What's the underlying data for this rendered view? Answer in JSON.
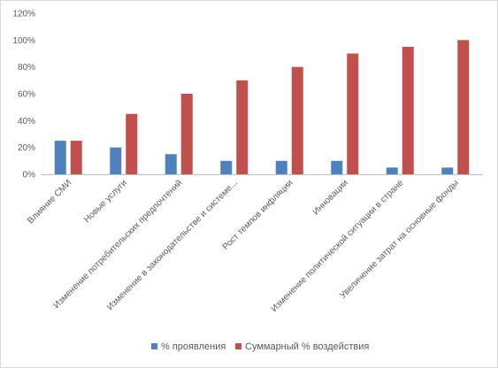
{
  "chart_data": {
    "type": "bar",
    "categories": [
      "Влияние СМИ",
      "Новые услуги",
      "Изменение потребительских предпочтений",
      "Изменение в законодательстве и системе...",
      "Рост темпов инфляции",
      "Инновации",
      "Изменение политической ситуации в стране",
      "Увеличение затрат на основные фонды"
    ],
    "series": [
      {
        "name": "% проявления",
        "color": "#4f81bd",
        "values": [
          25,
          20,
          15,
          10,
          10,
          10,
          5,
          5
        ]
      },
      {
        "name": "Суммарный % воздействия",
        "color": "#c0504d",
        "values": [
          25,
          45,
          60,
          70,
          80,
          90,
          95,
          100
        ]
      }
    ],
    "ylim": [
      0,
      120
    ],
    "ytick_values": [
      0,
      20,
      40,
      60,
      80,
      100,
      120
    ],
    "ytick_labels": [
      "0%",
      "20%",
      "40%",
      "60%",
      "80%",
      "100%",
      "120%"
    ],
    "grid": false,
    "legend_position": "bottom"
  }
}
